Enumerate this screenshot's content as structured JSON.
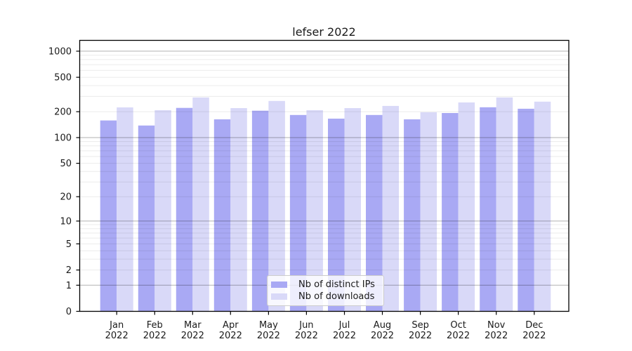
{
  "chart_data": {
    "type": "bar",
    "title": "lefser 2022",
    "categories": [
      "Jan",
      "Feb",
      "Mar",
      "Apr",
      "May",
      "Jun",
      "Jul",
      "Aug",
      "Sep",
      "Oct",
      "Nov",
      "Dec"
    ],
    "category_sublabel": "2022",
    "series": [
      {
        "name": "Nb of distinct IPs",
        "color": "#a9a9f4",
        "values": [
          158,
          138,
          221,
          163,
          205,
          183,
          166,
          183,
          163,
          193,
          225,
          216
        ]
      },
      {
        "name": "Nb of downloads",
        "color": "#d9d9f8",
        "values": [
          224,
          208,
          292,
          220,
          266,
          208,
          220,
          233,
          197,
          256,
          292,
          261
        ]
      }
    ],
    "yscale": "log1p",
    "yticks": [
      0,
      1,
      2,
      5,
      10,
      20,
      50,
      100,
      200,
      500,
      1000
    ],
    "ylim": [
      0,
      1330
    ],
    "grid": true,
    "grid_over_bars": true,
    "legend_position": "lower center",
    "axis_color": "#000000",
    "text_color": "#1a1a1a"
  }
}
